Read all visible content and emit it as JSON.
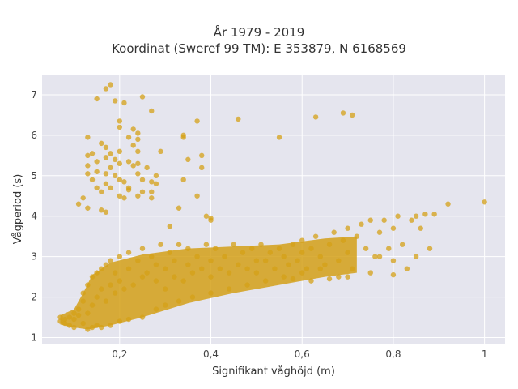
{
  "chart_data": {
    "type": "scatter",
    "title": "År 1979 - 2019",
    "subtitle": "Koordinat (Sweref 99 TM): E 353879, N 6168569",
    "xlabel": "Signifikant våghöjd (m)",
    "ylabel": "Vågperiod (s)",
    "xlim": [
      0.03,
      1.045
    ],
    "ylim": [
      0.85,
      7.5
    ],
    "x_ticks": [
      0.2,
      0.4,
      0.6,
      0.8,
      1.0
    ],
    "x_tick_labels": [
      "0,2",
      "0,4",
      "0,6",
      "0,8",
      "1"
    ],
    "y_ticks": [
      1,
      2,
      3,
      4,
      5,
      6,
      7
    ],
    "y_tick_labels": [
      "1",
      "2",
      "3",
      "4",
      "5",
      "6",
      "7"
    ],
    "grid": true,
    "marker_color": "#d4a017",
    "background_color": "#e5e5ee",
    "series": [
      {
        "points": [
          [
            0.07,
            1.4
          ],
          [
            0.07,
            1.5
          ],
          [
            0.08,
            1.35
          ],
          [
            0.08,
            1.45
          ],
          [
            0.09,
            1.5
          ],
          [
            0.09,
            1.3
          ],
          [
            0.1,
            1.6
          ],
          [
            0.1,
            1.45
          ],
          [
            0.11,
            1.55
          ],
          [
            0.11,
            1.7
          ],
          [
            0.12,
            1.35
          ],
          [
            0.12,
            1.9
          ],
          [
            0.12,
            2.1
          ],
          [
            0.13,
            1.6
          ],
          [
            0.13,
            2.3
          ],
          [
            0.14,
            1.8
          ],
          [
            0.14,
            2.5
          ],
          [
            0.15,
            2.0
          ],
          [
            0.15,
            2.6
          ],
          [
            0.16,
            2.2
          ],
          [
            0.16,
            2.7
          ],
          [
            0.17,
            1.9
          ],
          [
            0.17,
            2.8
          ],
          [
            0.18,
            2.3
          ],
          [
            0.18,
            2.9
          ],
          [
            0.19,
            2.1
          ],
          [
            0.19,
            2.6
          ],
          [
            0.2,
            2.4
          ],
          [
            0.2,
            3.0
          ],
          [
            0.21,
            2.2
          ],
          [
            0.22,
            2.7
          ],
          [
            0.22,
            3.1
          ],
          [
            0.23,
            2.3
          ],
          [
            0.24,
            2.9
          ],
          [
            0.25,
            2.5
          ],
          [
            0.25,
            3.2
          ],
          [
            0.26,
            2.6
          ],
          [
            0.27,
            3.0
          ],
          [
            0.28,
            2.4
          ],
          [
            0.28,
            2.8
          ],
          [
            0.29,
            3.3
          ],
          [
            0.3,
            2.7
          ],
          [
            0.3,
            2.2
          ],
          [
            0.31,
            3.1
          ],
          [
            0.32,
            2.5
          ],
          [
            0.32,
            2.9
          ],
          [
            0.33,
            3.3
          ],
          [
            0.34,
            2.4
          ],
          [
            0.35,
            2.8
          ],
          [
            0.35,
            3.2
          ],
          [
            0.36,
            2.6
          ],
          [
            0.37,
            3.0
          ],
          [
            0.38,
            2.7
          ],
          [
            0.39,
            3.3
          ],
          [
            0.4,
            2.5
          ],
          [
            0.4,
            2.9
          ],
          [
            0.41,
            3.2
          ],
          [
            0.42,
            2.7
          ],
          [
            0.43,
            3.0
          ],
          [
            0.44,
            2.6
          ],
          [
            0.45,
            3.3
          ],
          [
            0.46,
            2.8
          ],
          [
            0.47,
            3.1
          ],
          [
            0.48,
            2.7
          ],
          [
            0.49,
            3.2
          ],
          [
            0.5,
            2.9
          ],
          [
            0.5,
            2.6
          ],
          [
            0.51,
            3.3
          ],
          [
            0.52,
            2.9
          ],
          [
            0.53,
            3.1
          ],
          [
            0.54,
            2.7
          ],
          [
            0.55,
            3.2
          ],
          [
            0.56,
            3.0
          ],
          [
            0.57,
            2.8
          ],
          [
            0.58,
            3.3
          ],
          [
            0.59,
            2.9
          ],
          [
            0.6,
            3.1
          ],
          [
            0.6,
            3.4
          ],
          [
            0.61,
            2.7
          ],
          [
            0.62,
            3.2
          ],
          [
            0.63,
            3.5
          ],
          [
            0.64,
            3.0
          ],
          [
            0.65,
            2.8
          ],
          [
            0.66,
            3.3
          ],
          [
            0.67,
            3.6
          ],
          [
            0.68,
            2.9
          ],
          [
            0.69,
            3.4
          ],
          [
            0.7,
            3.1
          ],
          [
            0.7,
            3.7
          ],
          [
            0.71,
            2.7
          ],
          [
            0.72,
            3.5
          ],
          [
            0.73,
            3.8
          ],
          [
            0.74,
            3.2
          ],
          [
            0.75,
            3.9
          ],
          [
            0.76,
            3.0
          ],
          [
            0.77,
            3.6
          ],
          [
            0.78,
            3.9
          ],
          [
            0.79,
            3.2
          ],
          [
            0.8,
            3.7
          ],
          [
            0.81,
            4.0
          ],
          [
            0.82,
            3.3
          ],
          [
            0.83,
            2.7
          ],
          [
            0.84,
            3.9
          ],
          [
            0.85,
            4.0
          ],
          [
            0.86,
            3.7
          ],
          [
            0.87,
            4.05
          ],
          [
            0.89,
            4.05
          ],
          [
            0.92,
            4.3
          ],
          [
            1.0,
            4.35
          ],
          [
            0.8,
            2.55
          ],
          [
            0.75,
            2.6
          ],
          [
            0.7,
            2.5
          ],
          [
            0.66,
            2.45
          ],
          [
            0.62,
            2.4
          ],
          [
            0.58,
            2.45
          ],
          [
            0.85,
            3.0
          ],
          [
            0.88,
            3.2
          ],
          [
            0.8,
            2.9
          ],
          [
            0.77,
            3.0
          ],
          [
            0.68,
            2.5
          ],
          [
            0.13,
            1.2
          ],
          [
            0.14,
            1.25
          ],
          [
            0.15,
            1.3
          ],
          [
            0.16,
            1.25
          ],
          [
            0.18,
            1.3
          ],
          [
            0.2,
            1.4
          ],
          [
            0.22,
            1.45
          ],
          [
            0.25,
            1.5
          ],
          [
            0.28,
            1.7
          ],
          [
            0.3,
            1.8
          ],
          [
            0.33,
            1.9
          ],
          [
            0.36,
            2.0
          ],
          [
            0.4,
            2.1
          ],
          [
            0.44,
            2.2
          ],
          [
            0.48,
            2.3
          ],
          [
            0.52,
            2.4
          ],
          [
            0.56,
            2.5
          ],
          [
            0.6,
            2.6
          ],
          [
            0.64,
            2.7
          ],
          [
            0.1,
            1.25
          ],
          [
            0.15,
            6.9
          ],
          [
            0.17,
            7.15
          ],
          [
            0.18,
            7.25
          ],
          [
            0.19,
            6.85
          ],
          [
            0.21,
            6.8
          ],
          [
            0.25,
            6.95
          ],
          [
            0.27,
            6.6
          ],
          [
            0.2,
            6.35
          ],
          [
            0.2,
            6.2
          ],
          [
            0.23,
            6.15
          ],
          [
            0.24,
            6.05
          ],
          [
            0.37,
            6.35
          ],
          [
            0.46,
            6.4
          ],
          [
            0.63,
            6.45
          ],
          [
            0.69,
            6.55
          ],
          [
            0.71,
            6.5
          ],
          [
            0.34,
            6.0
          ],
          [
            0.34,
            5.95
          ],
          [
            0.55,
            5.95
          ],
          [
            0.22,
            5.95
          ],
          [
            0.24,
            5.9
          ],
          [
            0.23,
            5.75
          ],
          [
            0.24,
            5.6
          ],
          [
            0.29,
            5.6
          ],
          [
            0.18,
            5.55
          ],
          [
            0.2,
            5.6
          ],
          [
            0.16,
            5.8
          ],
          [
            0.13,
            5.95
          ],
          [
            0.13,
            5.5
          ],
          [
            0.14,
            5.55
          ],
          [
            0.15,
            5.35
          ],
          [
            0.17,
            5.45
          ],
          [
            0.19,
            5.4
          ],
          [
            0.2,
            5.3
          ],
          [
            0.22,
            5.35
          ],
          [
            0.23,
            5.25
          ],
          [
            0.24,
            5.3
          ],
          [
            0.26,
            5.2
          ],
          [
            0.38,
            5.5
          ],
          [
            0.35,
            5.4
          ],
          [
            0.13,
            5.25
          ],
          [
            0.13,
            5.05
          ],
          [
            0.17,
            5.05
          ],
          [
            0.19,
            5.0
          ],
          [
            0.2,
            4.9
          ],
          [
            0.14,
            4.9
          ],
          [
            0.21,
            4.85
          ],
          [
            0.25,
            4.9
          ],
          [
            0.28,
            5.0
          ],
          [
            0.28,
            4.8
          ],
          [
            0.34,
            4.9
          ],
          [
            0.15,
            4.7
          ],
          [
            0.16,
            4.6
          ],
          [
            0.18,
            4.7
          ],
          [
            0.2,
            4.5
          ],
          [
            0.21,
            4.45
          ],
          [
            0.24,
            4.5
          ],
          [
            0.22,
            4.65
          ],
          [
            0.25,
            4.6
          ],
          [
            0.27,
            4.45
          ],
          [
            0.12,
            4.45
          ],
          [
            0.11,
            4.3
          ],
          [
            0.13,
            4.2
          ],
          [
            0.16,
            4.15
          ],
          [
            0.17,
            4.1
          ],
          [
            0.37,
            4.5
          ],
          [
            0.33,
            4.2
          ],
          [
            0.39,
            4.0
          ],
          [
            0.4,
            3.9
          ],
          [
            0.27,
            4.6
          ],
          [
            0.4,
            3.95
          ],
          [
            0.31,
            3.75
          ],
          [
            0.22,
            4.7
          ],
          [
            0.27,
            4.85
          ],
          [
            0.17,
            4.8
          ],
          [
            0.17,
            5.7
          ],
          [
            0.38,
            5.2
          ],
          [
            0.24,
            5.05
          ],
          [
            0.18,
            5.2
          ],
          [
            0.15,
            5.1
          ]
        ]
      }
    ]
  }
}
